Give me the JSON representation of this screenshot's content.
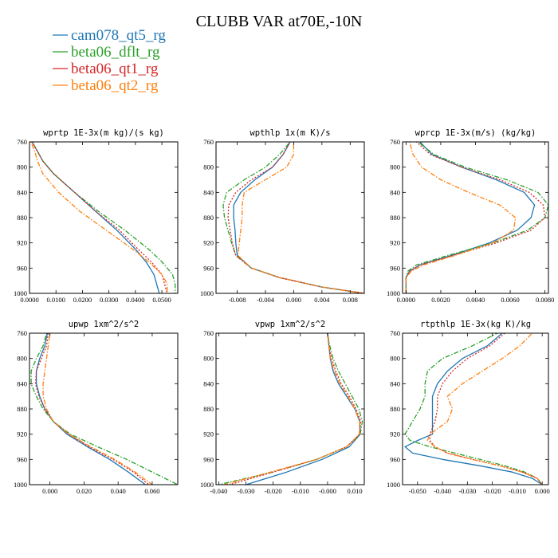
{
  "figure": {
    "title": "CLUBB VAR at70E,-10N",
    "legend": [
      {
        "label": "cam078_qt5_rg",
        "color": "#1f77b4",
        "dash": "solid"
      },
      {
        "label": "beta06_dflt_rg",
        "color": "#2ca02c",
        "dash": "dashdot"
      },
      {
        "label": "beta06_qt1_rg",
        "color": "#d62728",
        "dash": "dot"
      },
      {
        "label": "beta06_qt2_rg",
        "color": "#ff7f0e",
        "dash": "dashdot"
      }
    ]
  },
  "chart_data": [
    {
      "type": "line",
      "title": "wprtp  1E-3x(m kg)/(s kg)",
      "xlim": [
        0.0,
        0.056
      ],
      "ylim": [
        760,
        1000
      ],
      "y_inverted": true,
      "xticks": [
        0.0,
        0.01,
        0.02,
        0.03,
        0.04,
        0.05
      ],
      "xtick_labels": [
        "0.0000",
        "0.0100",
        "0.0200",
        "0.0300",
        "0.0400",
        "0.0500"
      ],
      "yticks": [
        760,
        800,
        840,
        880,
        920,
        960,
        1000
      ],
      "ytick_labels": [
        "760",
        "800",
        "840",
        "880",
        "920",
        "960",
        "1000"
      ],
      "y": [
        750,
        760,
        775,
        790,
        810,
        840,
        870,
        900,
        930,
        950,
        970,
        985,
        1000
      ],
      "series": [
        {
          "name": "cam078_qt5_rg",
          "x": [
            0.0,
            0.001,
            0.003,
            0.005,
            0.009,
            0.017,
            0.025,
            0.033,
            0.04,
            0.044,
            0.047,
            0.048,
            0.049
          ]
        },
        {
          "name": "beta06_dflt_rg",
          "x": [
            0.0,
            0.001,
            0.003,
            0.005,
            0.009,
            0.017,
            0.026,
            0.036,
            0.045,
            0.05,
            0.054,
            0.055,
            0.055
          ]
        },
        {
          "name": "beta06_qt1_rg",
          "x": [
            0.0,
            0.001,
            0.003,
            0.005,
            0.009,
            0.017,
            0.025,
            0.034,
            0.041,
            0.046,
            0.05,
            0.051,
            0.052
          ]
        },
        {
          "name": "beta06_qt2_rg",
          "x": [
            0.0,
            0.0005,
            0.002,
            0.003,
            0.005,
            0.011,
            0.019,
            0.029,
            0.039,
            0.045,
            0.05,
            0.052,
            0.052
          ]
        }
      ]
    },
    {
      "type": "line",
      "title": "wpthlp  1x(m K)/s",
      "xlim": [
        -0.011,
        0.01
      ],
      "ylim": [
        760,
        1000
      ],
      "y_inverted": true,
      "xticks": [
        -0.008,
        -0.004,
        0.0,
        0.004,
        0.008
      ],
      "xtick_labels": [
        "-0.008",
        "-0.004",
        "0.000",
        "0.004",
        "0.008"
      ],
      "yticks": [
        760,
        800,
        840,
        880,
        920,
        960,
        1000
      ],
      "ytick_labels": [
        "760",
        "800",
        "840",
        "880",
        "920",
        "960",
        "1000"
      ],
      "y": [
        750,
        760,
        780,
        800,
        820,
        840,
        860,
        880,
        900,
        920,
        940,
        960,
        975,
        990,
        1000
      ],
      "series": [
        {
          "name": "cam078_qt5_rg",
          "x": [
            0.0,
            -0.0005,
            -0.0015,
            -0.003,
            -0.0055,
            -0.0075,
            -0.0085,
            -0.0085,
            -0.0083,
            -0.0082,
            -0.008,
            -0.006,
            -0.002,
            0.004,
            0.01
          ]
        },
        {
          "name": "beta06_dflt_rg",
          "x": [
            0.0,
            -0.0005,
            -0.002,
            -0.004,
            -0.007,
            -0.0095,
            -0.01,
            -0.0098,
            -0.0093,
            -0.0088,
            -0.0082,
            -0.006,
            -0.002,
            0.004,
            0.01
          ]
        },
        {
          "name": "beta06_qt1_rg",
          "x": [
            0.0,
            -0.0005,
            -0.0015,
            -0.003,
            -0.006,
            -0.0082,
            -0.0092,
            -0.0093,
            -0.009,
            -0.0087,
            -0.0082,
            -0.006,
            -0.002,
            0.004,
            0.01
          ]
        },
        {
          "name": "beta06_qt2_rg",
          "x": [
            0.0,
            0.0,
            0.0,
            -0.001,
            -0.004,
            -0.007,
            -0.0073,
            -0.0073,
            -0.0075,
            -0.0077,
            -0.0079,
            -0.006,
            -0.002,
            0.004,
            0.01
          ]
        }
      ]
    },
    {
      "type": "line",
      "title": "wprcp  1E-3x(m/s) (kg/kg)",
      "xlim": [
        -0.0002,
        0.0082
      ],
      "ylim": [
        760,
        1000
      ],
      "y_inverted": true,
      "xticks": [
        0.0,
        0.002,
        0.004,
        0.006,
        0.008
      ],
      "xtick_labels": [
        "0.0000",
        "0.0020",
        "0.0040",
        "0.0060",
        "0.0080"
      ],
      "yticks": [
        760,
        800,
        840,
        880,
        920,
        960,
        1000
      ],
      "ytick_labels": [
        "760",
        "800",
        "840",
        "880",
        "920",
        "960",
        "1000"
      ],
      "y": [
        750,
        760,
        780,
        800,
        820,
        840,
        860,
        880,
        900,
        920,
        940,
        955,
        965,
        975,
        990,
        1000
      ],
      "series": [
        {
          "name": "cam078_qt5_rg",
          "x": [
            0.0006,
            0.0008,
            0.0015,
            0.0032,
            0.0052,
            0.0068,
            0.0074,
            0.0072,
            0.0064,
            0.0048,
            0.0026,
            0.0008,
            0.0002,
            0.0,
            0.0,
            0.0
          ]
        },
        {
          "name": "beta06_dflt_rg",
          "x": [
            0.0005,
            0.0007,
            0.0016,
            0.0034,
            0.0058,
            0.0076,
            0.0082,
            0.008,
            0.007,
            0.005,
            0.0024,
            0.0006,
            0.0001,
            0.0,
            0.0,
            0.0
          ]
        },
        {
          "name": "beta06_qt1_rg",
          "x": [
            0.0004,
            0.0006,
            0.0014,
            0.0032,
            0.0054,
            0.0071,
            0.0079,
            0.008,
            0.0072,
            0.0052,
            0.0027,
            0.0008,
            0.0002,
            0.0,
            0.0,
            0.0
          ]
        },
        {
          "name": "beta06_qt2_rg",
          "x": [
            0.0001,
            0.0002,
            0.0004,
            0.0009,
            0.002,
            0.0036,
            0.0054,
            0.0063,
            0.0062,
            0.005,
            0.0028,
            0.001,
            0.0003,
            0.0,
            0.0,
            0.0
          ]
        }
      ]
    },
    {
      "type": "line",
      "title": "upwp  1xm^2/s^2",
      "xlim": [
        -0.012,
        0.075
      ],
      "ylim": [
        760,
        1000
      ],
      "y_inverted": true,
      "xticks": [
        0.0,
        0.02,
        0.04,
        0.06
      ],
      "xtick_labels": [
        "0.000",
        "0.020",
        "0.040",
        "0.060"
      ],
      "yticks": [
        760,
        800,
        840,
        880,
        920,
        960,
        1000
      ],
      "ytick_labels": [
        "760",
        "800",
        "840",
        "880",
        "920",
        "960",
        "1000"
      ],
      "y": [
        750,
        760,
        780,
        800,
        820,
        840,
        860,
        880,
        900,
        920,
        940,
        960,
        980,
        1000
      ],
      "series": [
        {
          "name": "cam078_qt5_rg",
          "x": [
            -0.001,
            -0.0015,
            -0.003,
            -0.006,
            -0.008,
            -0.008,
            -0.006,
            -0.003,
            0.002,
            0.01,
            0.022,
            0.035,
            0.046,
            0.056
          ]
        },
        {
          "name": "beta06_dflt_rg",
          "x": [
            -0.001,
            -0.002,
            -0.004,
            -0.008,
            -0.011,
            -0.011,
            -0.008,
            -0.004,
            0.002,
            0.012,
            0.028,
            0.045,
            0.06,
            0.075
          ]
        },
        {
          "name": "beta06_qt1_rg",
          "x": [
            -0.0005,
            -0.001,
            -0.002,
            -0.005,
            -0.008,
            -0.0085,
            -0.0065,
            -0.003,
            0.002,
            0.011,
            0.023,
            0.037,
            0.049,
            0.058
          ]
        },
        {
          "name": "beta06_qt2_rg",
          "x": [
            0.0,
            0.0,
            -0.001,
            -0.002,
            -0.003,
            -0.004,
            -0.004,
            -0.002,
            0.002,
            0.011,
            0.024,
            0.038,
            0.05,
            0.06
          ]
        }
      ]
    },
    {
      "type": "line",
      "title": "vpwp  1xm^2/s^2",
      "xlim": [
        -0.041,
        0.0135
      ],
      "ylim": [
        760,
        1000
      ],
      "y_inverted": true,
      "xticks": [
        -0.04,
        -0.03,
        -0.02,
        -0.01,
        0.0,
        0.01
      ],
      "xtick_labels": [
        "-0.040",
        "-0.030",
        "-0.020",
        "-0.010",
        "-0.000",
        "0.010"
      ],
      "yticks": [
        760,
        800,
        840,
        880,
        920,
        960,
        1000
      ],
      "ytick_labels": [
        "760",
        "800",
        "840",
        "880",
        "920",
        "960",
        "1000"
      ],
      "y": [
        750,
        760,
        780,
        800,
        820,
        840,
        860,
        880,
        900,
        920,
        940,
        960,
        980,
        1000
      ],
      "series": [
        {
          "name": "cam078_qt5_rg",
          "x": [
            0.0,
            0.0,
            0.0005,
            0.001,
            0.002,
            0.004,
            0.007,
            0.01,
            0.0118,
            0.012,
            0.008,
            -0.002,
            -0.015,
            -0.03
          ]
        },
        {
          "name": "beta06_dflt_rg",
          "x": [
            0.0,
            0.0,
            0.0008,
            0.002,
            0.004,
            0.0065,
            0.009,
            0.0115,
            0.0128,
            0.012,
            0.007,
            -0.004,
            -0.02,
            -0.04
          ]
        },
        {
          "name": "beta06_qt1_rg",
          "x": [
            0.0,
            0.0,
            0.0005,
            0.0015,
            0.003,
            0.005,
            0.008,
            0.0105,
            0.0122,
            0.0118,
            0.007,
            -0.004,
            -0.02,
            -0.036
          ]
        },
        {
          "name": "beta06_qt2_rg",
          "x": [
            0.0,
            0.0,
            0.0005,
            0.001,
            0.0025,
            0.0045,
            0.0075,
            0.01,
            0.0118,
            0.0117,
            0.007,
            -0.004,
            -0.021,
            -0.038
          ]
        }
      ]
    },
    {
      "type": "line",
      "title": "rtpthlp  1E-3x(kg K)/kg",
      "xlim": [
        -0.056,
        0.0025
      ],
      "ylim": [
        760,
        1000
      ],
      "y_inverted": true,
      "xticks": [
        -0.05,
        -0.04,
        -0.03,
        -0.02,
        -0.01,
        0.0
      ],
      "xtick_labels": [
        "-0.050",
        "-0.040",
        "-0.030",
        "-0.020",
        "-0.010",
        "0.000"
      ],
      "yticks": [
        760,
        800,
        840,
        880,
        920,
        960,
        1000
      ],
      "ytick_labels": [
        "760",
        "800",
        "840",
        "880",
        "920",
        "960",
        "1000"
      ],
      "y": [
        750,
        760,
        780,
        800,
        820,
        840,
        860,
        880,
        900,
        920,
        930,
        940,
        950,
        960,
        970,
        980,
        990,
        1000
      ],
      "series": [
        {
          "name": "cam078_qt5_rg",
          "x": [
            -0.013,
            -0.016,
            -0.022,
            -0.032,
            -0.038,
            -0.042,
            -0.044,
            -0.044,
            -0.044,
            -0.044,
            -0.05,
            -0.055,
            -0.052,
            -0.04,
            -0.025,
            -0.012,
            -0.004,
            0.0
          ]
        },
        {
          "name": "beta06_dflt_rg",
          "x": [
            -0.014,
            -0.018,
            -0.028,
            -0.04,
            -0.046,
            -0.047,
            -0.047,
            -0.049,
            -0.052,
            -0.055,
            -0.053,
            -0.045,
            -0.035,
            -0.025,
            -0.015,
            -0.007,
            -0.002,
            0.0
          ]
        },
        {
          "name": "beta06_qt1_rg",
          "x": [
            -0.012,
            -0.015,
            -0.021,
            -0.03,
            -0.036,
            -0.04,
            -0.042,
            -0.042,
            -0.043,
            -0.045,
            -0.045,
            -0.043,
            -0.038,
            -0.028,
            -0.017,
            -0.008,
            -0.002,
            0.0
          ]
        },
        {
          "name": "beta06_qt2_rg",
          "x": [
            -0.002,
            -0.004,
            -0.009,
            -0.016,
            -0.024,
            -0.032,
            -0.038,
            -0.036,
            -0.038,
            -0.045,
            -0.046,
            -0.043,
            -0.038,
            -0.028,
            -0.017,
            -0.008,
            -0.002,
            0.0
          ]
        }
      ]
    }
  ]
}
